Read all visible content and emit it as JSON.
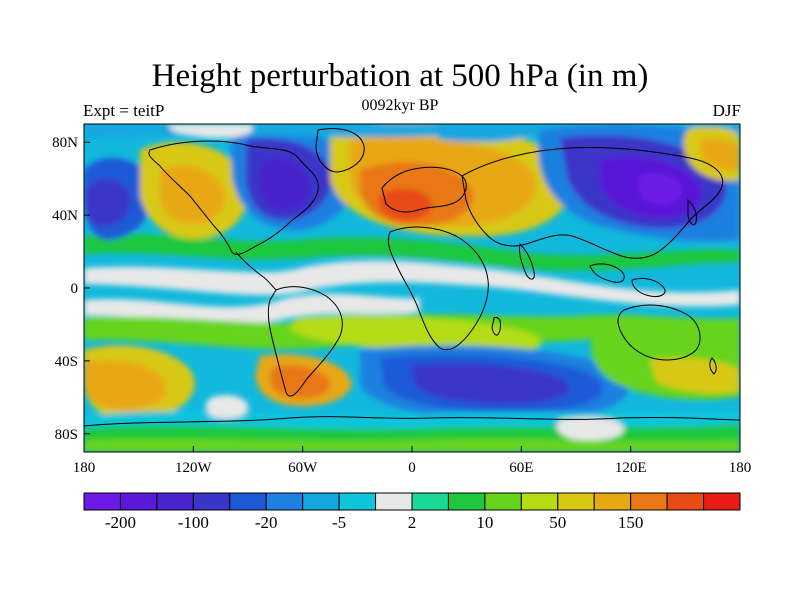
{
  "title": "Height perturbation at 500 hPa (in m)",
  "subtitle": "0092kyr BP",
  "left_label": "Expt = teitP",
  "right_label": "DJF",
  "x_ticks": [
    "180",
    "120W",
    "60W",
    "0",
    "60E",
    "120E",
    "180"
  ],
  "y_ticks": [
    "80N",
    "40N",
    "0",
    "40S",
    "80S"
  ],
  "colorbar": {
    "colors": [
      "#6d1ae8",
      "#5a18d8",
      "#4a24cc",
      "#3a35c8",
      "#1e5ad8",
      "#1e80e0",
      "#14a6e0",
      "#10c4dc",
      "#e8e8e8",
      "#1ad896",
      "#1ec83c",
      "#66d41c",
      "#b4dc14",
      "#d8c814",
      "#e8a814",
      "#e87814",
      "#e84c14",
      "#e81e14"
    ],
    "labels": [
      "-200",
      "-100",
      "-20",
      "-5",
      "2",
      "10",
      "50",
      "150"
    ]
  },
  "colors": {
    "ocean_bg": "#e8e8e8",
    "coast": "#000000"
  }
}
